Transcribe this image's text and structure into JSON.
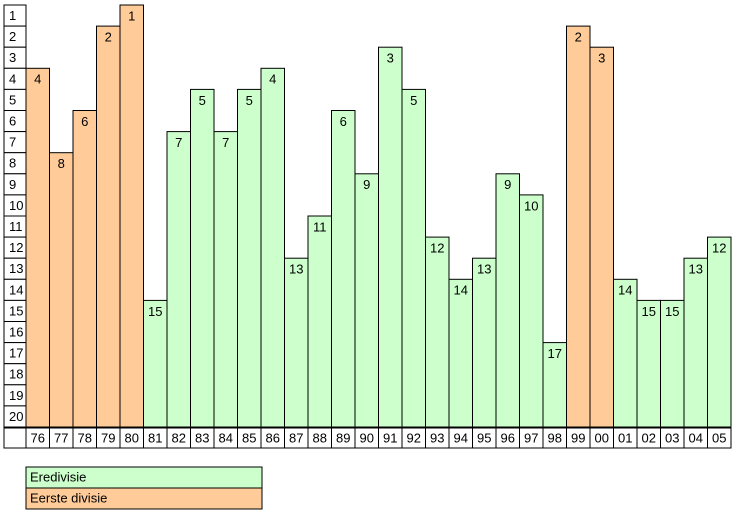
{
  "chart_data": {
    "type": "bar",
    "categories": [
      "76",
      "77",
      "78",
      "79",
      "80",
      "81",
      "82",
      "83",
      "84",
      "85",
      "86",
      "87",
      "88",
      "89",
      "90",
      "91",
      "92",
      "93",
      "94",
      "95",
      "96",
      "97",
      "98",
      "99",
      "00",
      "01",
      "02",
      "03",
      "04",
      "05"
    ],
    "series": [
      {
        "name": "Eredivisie",
        "color": "#ccffcc",
        "values": [
          null,
          null,
          null,
          null,
          null,
          15,
          7,
          5,
          7,
          5,
          4,
          13,
          11,
          6,
          9,
          3,
          5,
          12,
          14,
          13,
          9,
          10,
          17,
          null,
          null,
          14,
          15,
          15,
          13,
          12
        ]
      },
      {
        "name": "Eerste divisie",
        "color": "#ffcc99",
        "values": [
          4,
          8,
          6,
          2,
          1,
          null,
          null,
          null,
          null,
          null,
          null,
          null,
          null,
          null,
          null,
          null,
          null,
          null,
          null,
          null,
          null,
          null,
          null,
          2,
          3,
          null,
          null,
          null,
          null,
          null
        ]
      }
    ],
    "ylim": [
      1,
      21
    ],
    "inverted": true,
    "yticks": [
      1,
      2,
      3,
      4,
      5,
      6,
      7,
      8,
      9,
      10,
      11,
      12,
      13,
      14,
      15,
      16,
      17,
      18,
      19,
      20
    ],
    "legend": "bottom-left"
  }
}
